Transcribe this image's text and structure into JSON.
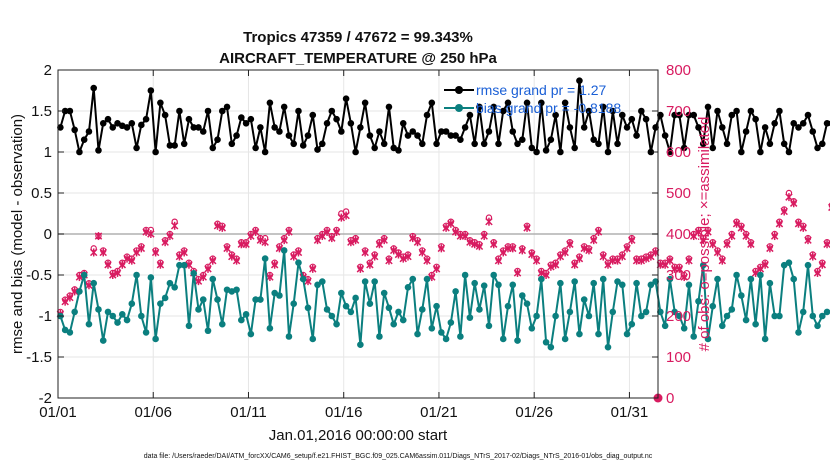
{
  "chart_data": {
    "type": "line",
    "title_line1": "Tropics 47359 / 47672 = 99.343%",
    "title_line2": "AIRCRAFT_TEMPERATURE @ 250 hPa",
    "xlabel": "Jan.01,2016 00:00:00 start",
    "ylabel_left": "rmse and bias (model - observation)",
    "ylabel_right": "# of obs: o=possible; ×=assimilated",
    "xlim": [
      0,
      31.5
    ],
    "ylim_left": [
      -2,
      2
    ],
    "ylim_right": [
      0,
      800
    ],
    "x_ticks": [
      0,
      5,
      10,
      15,
      20,
      25,
      30
    ],
    "x_tick_labels": [
      "01/01",
      "01/06",
      "01/11",
      "01/16",
      "01/21",
      "01/26",
      "01/31"
    ],
    "y_ticks_left": [
      -2,
      -1.5,
      -1,
      -0.5,
      0,
      0.5,
      1,
      1.5,
      2
    ],
    "y_tick_labels_left": [
      "-2",
      "-1.5",
      "-1",
      "-0.5",
      "0",
      "0.5",
      "1",
      "1.5",
      "2"
    ],
    "y_ticks_right": [
      0,
      100,
      200,
      300,
      400,
      500,
      600,
      700,
      800
    ],
    "y_tick_labels_right": [
      "0",
      "100",
      "200",
      "300",
      "400",
      "500",
      "600",
      "700",
      "800"
    ],
    "grid": true,
    "zero_line": 0,
    "legend": [
      {
        "label": "rmse grand pr = 1.27",
        "color": "#000000",
        "series": "rmse"
      },
      {
        "label": "bias grand pr = -0.8188",
        "color": "#0b7f7f",
        "series": "bias"
      }
    ],
    "legend_position": "top-right",
    "footnote": "data file: /Users/raeder/DAI/ATM_forcXX/CAM6_setup/f.e21.FHIST_BGC.f09_025.CAM6assim.011/Diags_NTrS_2017-02/Diags_NTrS_2016-01/obs_diag_output.nc",
    "series_colors": {
      "rmse": "#000000",
      "bias": "#0b7f7f",
      "obs": "#d81b60",
      "grid": "#e6e6e6",
      "zero": "#b0b0b0"
    },
    "times_step_days": 0.25,
    "rmse_values": [
      1.3,
      1.5,
      1.5,
      1.27,
      1.0,
      1.15,
      1.25,
      1.78,
      1.02,
      1.35,
      1.4,
      1.3,
      1.35,
      1.32,
      1.3,
      1.35,
      1.05,
      1.33,
      1.4,
      1.75,
      1.0,
      1.6,
      1.45,
      1.08,
      1.08,
      1.5,
      1.1,
      1.4,
      1.3,
      1.3,
      1.25,
      1.5,
      1.05,
      1.15,
      1.5,
      1.55,
      1.1,
      1.2,
      1.42,
      1.35,
      1.4,
      1.05,
      1.3,
      1.0,
      1.6,
      1.3,
      1.25,
      1.55,
      1.2,
      1.1,
      1.5,
      1.08,
      1.2,
      1.45,
      1.03,
      1.1,
      1.35,
      1.5,
      1.4,
      1.25,
      1.65,
      1.35,
      1.0,
      1.3,
      1.6,
      1.2,
      1.05,
      1.25,
      1.1,
      1.55,
      1.05,
      1.02,
      1.35,
      1.2,
      1.25,
      1.2,
      1.1,
      1.45,
      1.6,
      1.1,
      1.25,
      1.25,
      1.2,
      1.2,
      1.15,
      1.3,
      1.45,
      1.1,
      1.55,
      1.1,
      1.25,
      1.55,
      1.1,
      1.5,
      1.6,
      1.25,
      1.1,
      1.15,
      1.6,
      1.05,
      1.0,
      1.6,
      1.02,
      1.15,
      1.45,
      1.0,
      1.6,
      1.3,
      1.05,
      1.87,
      1.3,
      1.5,
      1.15,
      1.1,
      1.55,
      1.0,
      1.5,
      1.1,
      1.45,
      1.3,
      1.4,
      1.2,
      1.5,
      1.4,
      1.0,
      1.3,
      1.45,
      1.2,
      1.0,
      1.45,
      1.45,
      1.05,
      1.45,
      1.45,
      1.3,
      1.1,
      1.55,
      1.05,
      1.5,
      1.3,
      1.1,
      1.45,
      1.5,
      1.0,
      1.25,
      1.5,
      1.4,
      1.0,
      1.3,
      1.1,
      1.35,
      1.5,
      1.1,
      1.0,
      1.35,
      1.3,
      1.35,
      1.45,
      1.25,
      1.05,
      1.1,
      1.35,
      1.35,
      1.25
    ],
    "bias_values": [
      -1.0,
      -1.17,
      -1.2,
      -0.95,
      -0.7,
      -0.5,
      -1.1,
      -0.6,
      -0.92,
      -1.3,
      -0.95,
      -1.0,
      -1.08,
      -0.98,
      -1.05,
      -0.85,
      -0.5,
      -1.0,
      -1.2,
      -0.53,
      -1.28,
      -0.85,
      -0.78,
      -0.6,
      -0.65,
      -0.38,
      -0.38,
      -1.12,
      -0.48,
      -0.92,
      -0.8,
      -1.18,
      -0.55,
      -0.8,
      -1.1,
      -0.68,
      -0.7,
      -0.68,
      -1.05,
      -0.98,
      -1.22,
      -0.8,
      -0.8,
      -0.3,
      -1.15,
      -0.72,
      -0.75,
      -0.2,
      -1.25,
      -0.85,
      -0.35,
      -0.55,
      -0.9,
      -1.28,
      -0.62,
      -0.58,
      -0.92,
      -1.0,
      -1.1,
      -0.72,
      -0.88,
      -0.95,
      -0.78,
      -1.35,
      -0.58,
      -0.85,
      -0.58,
      -1.25,
      -0.72,
      -0.9,
      -1.1,
      -0.95,
      -1.05,
      -0.65,
      -0.55,
      -1.22,
      -0.92,
      -0.55,
      -1.15,
      -0.88,
      -1.2,
      -1.28,
      -1.08,
      -0.7,
      -1.25,
      -0.5,
      -1.02,
      -0.6,
      -0.92,
      -0.63,
      -1.12,
      -0.5,
      -0.62,
      -1.28,
      -0.88,
      -0.62,
      -1.3,
      -0.75,
      -0.85,
      -1.15,
      -1.0,
      -0.55,
      -1.32,
      -1.38,
      -1.0,
      -0.6,
      -1.28,
      -0.95,
      -0.58,
      -1.22,
      -0.8,
      -1.0,
      -0.6,
      -1.22,
      -0.55,
      -1.38,
      -0.95,
      -0.58,
      -0.62,
      -1.22,
      -1.1,
      -0.6,
      -1.0,
      -0.95,
      -0.62,
      -0.58,
      -0.95,
      -1.12,
      -0.55,
      -0.95,
      -1.0,
      -1.15,
      -0.62,
      -1.25,
      -0.82,
      -0.38,
      -1.28,
      -0.88,
      -0.55,
      -1.12,
      -1.0,
      -0.92,
      -0.5,
      -0.75,
      -1.05,
      -0.55,
      -1.1,
      -0.5,
      -1.28,
      -0.6,
      -1.0,
      -1.0,
      -0.38,
      -0.35,
      -0.55,
      -1.2,
      -0.95,
      -0.38,
      -1.0,
      -1.12,
      -1.0,
      -0.95
    ],
    "obs_possible": [
      210,
      240,
      250,
      265,
      300,
      305,
      280,
      365,
      395,
      360,
      330,
      305,
      310,
      330,
      345,
      340,
      360,
      370,
      410,
      410,
      360,
      330,
      385,
      400,
      430,
      350,
      360,
      330,
      310,
      290,
      300,
      320,
      340,
      425,
      420,
      370,
      350,
      340,
      380,
      380,
      400,
      410,
      390,
      390,
      300,
      330,
      370,
      390,
      410,
      350,
      360,
      300,
      290,
      320,
      390,
      400,
      410,
      395,
      410,
      450,
      455,
      385,
      390,
      320,
      360,
      330,
      350,
      380,
      390,
      340,
      365,
      355,
      345,
      350,
      395,
      385,
      360,
      340,
      300,
      320,
      370,
      420,
      430,
      410,
      400,
      400,
      385,
      380,
      375,
      400,
      440,
      380,
      340,
      360,
      370,
      370,
      310,
      365,
      420,
      355,
      340,
      310,
      305,
      325,
      330,
      350,
      360,
      380,
      330,
      345,
      370,
      365,
      390,
      410,
      350,
      330,
      340,
      340,
      350,
      370,
      390,
      340,
      340,
      345,
      350,
      360,
      330,
      330,
      340,
      320,
      320,
      300,
      340,
      400,
      410,
      390,
      410,
      380,
      360,
      340,
      380,
      400,
      430,
      420,
      400,
      380,
      310,
      320,
      330,
      370,
      400,
      430,
      460,
      500,
      480,
      430,
      420,
      390,
      350,
      310,
      330,
      380,
      470
    ],
    "obs_assimilated": [
      205,
      235,
      245,
      260,
      295,
      300,
      275,
      355,
      395,
      355,
      325,
      300,
      305,
      325,
      340,
      335,
      355,
      365,
      405,
      400,
      355,
      325,
      380,
      395,
      420,
      345,
      355,
      325,
      305,
      285,
      295,
      315,
      335,
      420,
      415,
      365,
      345,
      335,
      375,
      375,
      395,
      405,
      385,
      380,
      295,
      325,
      365,
      385,
      405,
      345,
      355,
      295,
      285,
      315,
      385,
      395,
      405,
      390,
      405,
      440,
      445,
      380,
      385,
      315,
      355,
      325,
      345,
      375,
      385,
      335,
      360,
      350,
      340,
      345,
      390,
      380,
      355,
      335,
      295,
      315,
      365,
      415,
      425,
      405,
      395,
      395,
      380,
      375,
      370,
      395,
      430,
      375,
      335,
      355,
      365,
      365,
      305,
      360,
      415,
      350,
      335,
      305,
      300,
      320,
      325,
      345,
      355,
      375,
      325,
      340,
      365,
      360,
      385,
      405,
      345,
      325,
      335,
      335,
      345,
      365,
      385,
      335,
      335,
      340,
      345,
      355,
      325,
      325,
      335,
      315,
      315,
      295,
      335,
      395,
      405,
      385,
      405,
      375,
      355,
      335,
      375,
      395,
      425,
      415,
      395,
      375,
      305,
      315,
      325,
      365,
      395,
      425,
      455,
      490,
      475,
      425,
      415,
      385,
      345,
      305,
      325,
      375,
      465
    ]
  }
}
